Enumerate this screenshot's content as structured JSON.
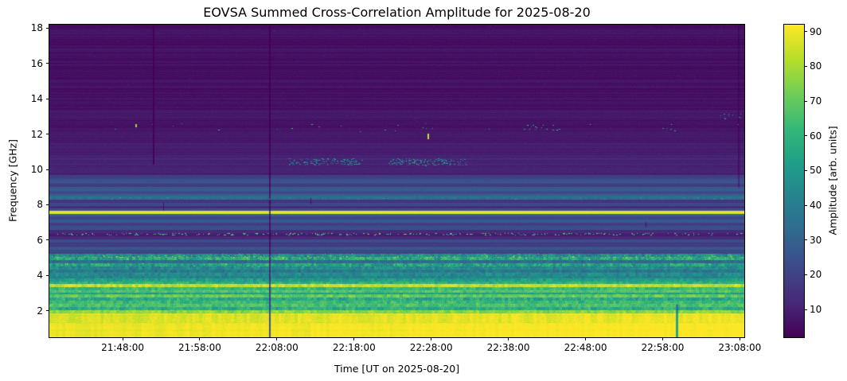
{
  "chart_data": {
    "type": "heatmap",
    "subtype": "radio-dynamic-spectrum",
    "title": "EOVSA Summed Cross-Correlation Amplitude for 2025-08-20",
    "xlabel": "Time [UT on 2025-08-20]",
    "ylabel": "Frequency [GHz]",
    "x_ticks": [
      "21:48:00",
      "21:58:00",
      "22:08:00",
      "22:18:00",
      "22:28:00",
      "22:38:00",
      "22:48:00",
      "22:58:00",
      "23:08:00"
    ],
    "y_ticks": [
      2,
      4,
      6,
      8,
      10,
      12,
      14,
      16,
      18
    ],
    "x_range": [
      "21:38:30",
      "23:08:35"
    ],
    "y_range_ghz": [
      0.5,
      18.2
    ],
    "grid": false,
    "colorbar": {
      "label": "Amplitude [arb. units]",
      "ticks": [
        10,
        20,
        30,
        40,
        50,
        60,
        70,
        80,
        90
      ],
      "vmin": 2,
      "vmax": 92,
      "colormap": "viridis",
      "viridis_stops": [
        "#440154",
        "#482878",
        "#3e4989",
        "#31688e",
        "#26828e",
        "#1f9e89",
        "#35b779",
        "#6ece58",
        "#b5de2b",
        "#fde725"
      ]
    },
    "bands": [
      {
        "f0": 13.4,
        "f1": 18.2,
        "a": 6,
        "rn": 2.5,
        "note": "dark quiet band with faint horizontal stripes"
      },
      {
        "f0": 12.9,
        "f1": 13.4,
        "a": 8,
        "rn": 2
      },
      {
        "f0": 12.1,
        "f1": 12.9,
        "a": 7,
        "rn": 2
      },
      {
        "f0": 11.5,
        "f1": 12.1,
        "a": 8,
        "rn": 2
      },
      {
        "f0": 10.9,
        "f1": 11.5,
        "a": 9,
        "rn": 2.5
      },
      {
        "f0": 10.1,
        "f1": 10.9,
        "a": 10,
        "rn": 2.5
      },
      {
        "f0": 9.7,
        "f1": 10.1,
        "a": 12,
        "rn": 3
      },
      {
        "f0": 9.45,
        "f1": 9.7,
        "a": 18,
        "rn": 3
      },
      {
        "f0": 9.2,
        "f1": 9.45,
        "a": 24,
        "rn": 3
      },
      {
        "f0": 9.0,
        "f1": 9.2,
        "a": 18,
        "rn": 2
      },
      {
        "f0": 8.8,
        "f1": 9.0,
        "a": 29,
        "rn": 3
      },
      {
        "f0": 8.6,
        "f1": 8.8,
        "a": 22,
        "rn": 2
      },
      {
        "f0": 8.45,
        "f1": 8.6,
        "a": 30,
        "rn": 2
      },
      {
        "f0": 8.28,
        "f1": 8.45,
        "a": 34,
        "rn": 2,
        "cn": 4
      },
      {
        "f0": 8.1,
        "f1": 8.28,
        "a": 16,
        "rn": 2
      },
      {
        "f0": 7.95,
        "f1": 8.1,
        "a": 22,
        "rn": 2
      },
      {
        "f0": 7.8,
        "f1": 7.95,
        "a": 13,
        "rn": 2
      },
      {
        "f0": 7.66,
        "f1": 7.8,
        "a": 24,
        "rn": 2
      },
      {
        "f0": 7.5,
        "f1": 7.66,
        "a": 88,
        "rn": 2,
        "note": "persistent bright RFI line near 7.6 GHz"
      },
      {
        "f0": 7.36,
        "f1": 7.5,
        "a": 30,
        "rn": 2
      },
      {
        "f0": 7.18,
        "f1": 7.36,
        "a": 22,
        "rn": 2
      },
      {
        "f0": 7.0,
        "f1": 7.18,
        "a": 26,
        "rn": 2
      },
      {
        "f0": 6.8,
        "f1": 7.0,
        "a": 19,
        "rn": 2
      },
      {
        "f0": 6.6,
        "f1": 6.8,
        "a": 23,
        "rn": 2
      },
      {
        "f0": 6.42,
        "f1": 6.6,
        "a": 12,
        "rn": 2
      },
      {
        "f0": 6.22,
        "f1": 6.42,
        "a": 9,
        "rn": 2
      },
      {
        "f0": 6.05,
        "f1": 6.22,
        "a": 13,
        "rn": 2
      },
      {
        "f0": 5.85,
        "f1": 6.05,
        "a": 23,
        "rn": 2
      },
      {
        "f0": 5.65,
        "f1": 5.85,
        "a": 17,
        "rn": 2
      },
      {
        "f0": 5.45,
        "f1": 5.65,
        "a": 26,
        "rn": 2
      },
      {
        "f0": 5.25,
        "f1": 5.45,
        "a": 21,
        "rn": 2
      },
      {
        "f0": 5.05,
        "f1": 5.25,
        "a": 45,
        "cn": 14,
        "sp": true
      },
      {
        "f0": 4.85,
        "f1": 5.05,
        "a": 55,
        "cn": 16,
        "sp": true,
        "note": "speckled green band near 5 GHz"
      },
      {
        "f0": 4.68,
        "f1": 4.85,
        "a": 34,
        "cn": 6
      },
      {
        "f0": 4.5,
        "f1": 4.68,
        "a": 52,
        "cn": 14,
        "sp": true
      },
      {
        "f0": 4.32,
        "f1": 4.5,
        "a": 45,
        "cn": 11
      },
      {
        "f0": 4.14,
        "f1": 4.32,
        "a": 38,
        "cn": 8
      },
      {
        "f0": 3.98,
        "f1": 4.14,
        "a": 46,
        "cn": 10
      },
      {
        "f0": 3.82,
        "f1": 3.98,
        "a": 42,
        "cn": 8
      },
      {
        "f0": 3.66,
        "f1": 3.82,
        "a": 52,
        "cn": 9
      },
      {
        "f0": 3.52,
        "f1": 3.66,
        "a": 58,
        "cn": 9
      },
      {
        "f0": 3.32,
        "f1": 3.52,
        "a": 84,
        "cn": 8,
        "sp": true,
        "note": "bright yellow band near 3.4 GHz"
      },
      {
        "f0": 3.16,
        "f1": 3.32,
        "a": 62,
        "cn": 9
      },
      {
        "f0": 3.02,
        "f1": 3.16,
        "a": 68,
        "cn": 8
      },
      {
        "f0": 2.92,
        "f1": 3.02,
        "a": 52,
        "cn": 8
      },
      {
        "f0": 2.74,
        "f1": 2.92,
        "a": 70,
        "cn": 9
      },
      {
        "f0": 2.56,
        "f1": 2.74,
        "a": 56,
        "cn": 12
      },
      {
        "f0": 2.38,
        "f1": 2.56,
        "a": 62,
        "cn": 10
      },
      {
        "f0": 2.2,
        "f1": 2.38,
        "a": 66,
        "cn": 9
      },
      {
        "f0": 2.02,
        "f1": 2.2,
        "a": 58,
        "cn": 10
      },
      {
        "f0": 1.84,
        "f1": 2.02,
        "a": 76,
        "cn": 8
      },
      {
        "f0": 1.3,
        "f1": 1.84,
        "a": 88,
        "cn": 5,
        "tg": 2
      },
      {
        "f0": 0.5,
        "f1": 1.3,
        "a": 91,
        "cn": 3,
        "tg": 2,
        "note": "saturated bright band at lowest frequencies"
      }
    ],
    "vlines": [
      {
        "name": "dropout-2151",
        "time": "21:51:55",
        "f0": 10.3,
        "f1": 18.2,
        "factor": 0.25,
        "w": 2
      },
      {
        "name": "dropout-2207",
        "time": "22:07:00",
        "f0": 0.5,
        "f1": 18.2,
        "factor": 0.3,
        "w": 2
      },
      {
        "name": "dip-2259-lowfreq",
        "time": "22:59:45",
        "f0": 0.5,
        "f1": 2.35,
        "factor": 0.6,
        "w": 3
      },
      {
        "name": "dropout-2307-highfreq",
        "time": "23:07:45",
        "f0": 9.0,
        "f1": 18.2,
        "factor": 0.5,
        "w": 2
      }
    ],
    "clusters": [
      {
        "name": "rfi-speckle-10.4GHz-a",
        "t0": "22:09:30",
        "t1": "22:19:00",
        "f0": 10.25,
        "f1": 10.62,
        "n": 130,
        "amp": 44,
        "spread": 20,
        "seed": 1
      },
      {
        "name": "rfi-speckle-10.4GHz-b",
        "t0": "22:22:30",
        "t1": "22:32:30",
        "f0": 10.22,
        "f1": 10.6,
        "n": 160,
        "amp": 46,
        "spread": 20,
        "seed": 2
      },
      {
        "name": "rfi-dotted-line-6.35GHz",
        "t0": "21:39:00",
        "t1": "23:08:30",
        "f0": 6.28,
        "f1": 6.4,
        "n": 260,
        "amp": 64,
        "spread": 26,
        "seed": 3
      },
      {
        "name": "sparse-specks-12.4GHz",
        "t0": "21:42:00",
        "t1": "23:08:00",
        "f0": 12.15,
        "f1": 12.6,
        "n": 26,
        "amp": 52,
        "spread": 28,
        "seed": 4
      },
      {
        "name": "specks-12.4GHz-cluster",
        "t0": "22:39:00",
        "t1": "22:45:00",
        "f0": 12.25,
        "f1": 12.55,
        "n": 16,
        "amp": 56,
        "spread": 22,
        "seed": 5
      },
      {
        "name": "specks-13GHz-right-edge",
        "t0": "23:05:30",
        "t1": "23:08:30",
        "f0": 12.85,
        "f1": 13.15,
        "n": 10,
        "amp": 46,
        "spread": 16,
        "seed": 6
      },
      {
        "name": "specks-8.4GHz-line",
        "t0": "21:40:00",
        "t1": "23:08:00",
        "f0": 8.3,
        "f1": 8.45,
        "n": 70,
        "amp": 46,
        "spread": 20,
        "seed": 7
      },
      {
        "name": "yellow-dots-5GHz",
        "t0": "21:39:00",
        "t1": "23:08:30",
        "f0": 4.95,
        "f1": 5.12,
        "n": 220,
        "amp": 72,
        "spread": 16,
        "seed": 8
      },
      {
        "name": "dots-4.55GHz",
        "t0": "21:39:00",
        "t1": "23:08:30",
        "f0": 4.5,
        "f1": 4.64,
        "n": 160,
        "amp": 66,
        "spread": 14,
        "seed": 9
      }
    ],
    "marks": [
      {
        "name": "bright-dash-11.9GHz",
        "time": "22:27:30",
        "f0": 11.72,
        "f1": 12.02,
        "amp": 86,
        "w": 2
      },
      {
        "name": "bright-speck-12.5GHz",
        "time": "21:49:40",
        "f0": 12.42,
        "f1": 12.58,
        "amp": 80,
        "w": 2
      },
      {
        "name": "dark-dash-7.9GHz",
        "time": "21:53:15",
        "f0": 7.66,
        "f1": 8.1,
        "amp": 6,
        "w": 1
      },
      {
        "name": "dark-dash-8.2GHz",
        "time": "22:12:20",
        "f0": 8.05,
        "f1": 8.4,
        "amp": 6,
        "w": 1
      },
      {
        "name": "dark-dash-6.9GHz",
        "time": "22:55:45",
        "f0": 6.72,
        "f1": 7.02,
        "amp": 6,
        "w": 1
      }
    ]
  }
}
